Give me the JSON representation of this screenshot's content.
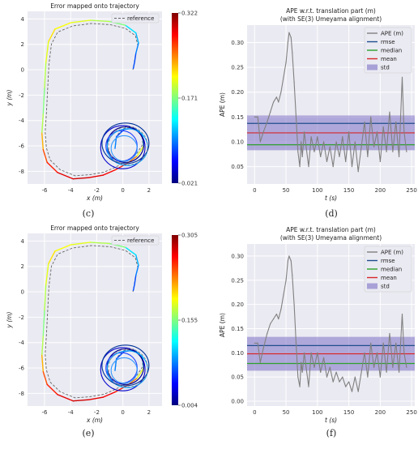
{
  "chart_data": [
    {
      "id": "c",
      "type": "line",
      "title": "Error mapped onto trajectory",
      "xlabel": "x (m)",
      "ylabel": "y (m)",
      "xlim": [
        -7.3,
        3.0
      ],
      "ylim": [
        -9.0,
        4.6
      ],
      "xticks": [
        "-6",
        "-4",
        "-2",
        "0",
        "2"
      ],
      "xtick_values": [
        -6,
        -4,
        -2,
        0,
        2
      ],
      "yticks": [
        "4",
        "2",
        "0",
        "-2",
        "-4",
        "-6",
        "-8"
      ],
      "ytick_values": [
        4,
        2,
        0,
        -2,
        -4,
        -6,
        -8
      ],
      "legend": [
        "reference"
      ],
      "legend_position": "top-right",
      "colorbar": {
        "min": 0.021,
        "max": 0.322,
        "labels": [
          "0.322",
          "0.171",
          "0.021"
        ]
      },
      "caption": "(c)"
    },
    {
      "id": "d",
      "type": "line",
      "title": "APE w.r.t. translation part (m)",
      "subtitle": "(with SE(3) Umeyama alignment)",
      "xlabel": "t (s)",
      "ylabel": "APE (m)",
      "xlim": [
        -12,
        255
      ],
      "ylim": [
        0.015,
        0.335
      ],
      "xticks": [
        "0",
        "50",
        "100",
        "150",
        "200",
        "250"
      ],
      "xtick_values": [
        0,
        50,
        100,
        150,
        200,
        250
      ],
      "yticks": [
        "0.05",
        "0.10",
        "0.15",
        "0.20",
        "0.25",
        "0.30"
      ],
      "ytick_values": [
        0.05,
        0.1,
        0.15,
        0.2,
        0.25,
        0.3
      ],
      "series": [
        {
          "name": "APE (m)",
          "color": "#808080",
          "x": [
            0,
            5,
            9,
            14,
            20,
            25,
            30,
            35,
            38,
            42,
            46,
            50,
            53,
            55,
            58,
            60,
            63,
            66,
            69,
            72,
            74,
            76,
            79,
            82,
            86,
            90,
            95,
            100,
            105,
            110,
            115,
            120,
            125,
            130,
            135,
            140,
            145,
            150,
            155,
            160,
            165,
            170,
            175,
            180,
            185,
            190,
            195,
            200,
            205,
            210,
            215,
            220,
            225,
            230,
            235,
            238,
            242
          ],
          "y": [
            0.15,
            0.15,
            0.1,
            0.12,
            0.14,
            0.16,
            0.18,
            0.19,
            0.18,
            0.2,
            0.23,
            0.26,
            0.3,
            0.32,
            0.31,
            0.28,
            0.22,
            0.15,
            0.08,
            0.05,
            0.1,
            0.07,
            0.12,
            0.09,
            0.05,
            0.11,
            0.08,
            0.11,
            0.07,
            0.1,
            0.06,
            0.09,
            0.05,
            0.1,
            0.07,
            0.11,
            0.06,
            0.12,
            0.05,
            0.1,
            0.04,
            0.09,
            0.14,
            0.07,
            0.15,
            0.09,
            0.12,
            0.06,
            0.13,
            0.08,
            0.16,
            0.08,
            0.14,
            0.07,
            0.23,
            0.12,
            0.08
          ]
        },
        {
          "name": "rmse",
          "color": "#1f4e8c",
          "value": 0.137
        },
        {
          "name": "median",
          "color": "#2ca02c",
          "value": 0.094
        },
        {
          "name": "mean",
          "color": "#d62728",
          "value": 0.118
        }
      ],
      "std_band": {
        "name": "std",
        "color": "#7b6fc4",
        "range": [
          0.083,
          0.153
        ]
      },
      "legend_position": "top-right",
      "caption": "(d)"
    },
    {
      "id": "e",
      "type": "line",
      "title": "Error mapped onto trajectory",
      "xlabel": "x (m)",
      "ylabel": "y (m)",
      "xlim": [
        -7.3,
        3.0
      ],
      "ylim": [
        -9.0,
        4.6
      ],
      "xticks": [
        "-6",
        "-4",
        "-2",
        "0",
        "2"
      ],
      "xtick_values": [
        -6,
        -4,
        -2,
        0,
        2
      ],
      "yticks": [
        "4",
        "2",
        "0",
        "-2",
        "-4",
        "-6",
        "-8"
      ],
      "ytick_values": [
        4,
        2,
        0,
        -2,
        -4,
        -6,
        -8
      ],
      "legend": [
        "reference"
      ],
      "legend_position": "top-right",
      "colorbar": {
        "min": 0.004,
        "max": 0.305,
        "labels": [
          "0.305",
          "0.155",
          "0.004"
        ]
      },
      "caption": "(e)"
    },
    {
      "id": "f",
      "type": "line",
      "title": "APE w.r.t. translation part (m)",
      "subtitle": "(with SE(3) Umeyama alignment)",
      "xlabel": "t (s)",
      "ylabel": "APE (m)",
      "xlim": [
        -12,
        255
      ],
      "ylim": [
        -0.01,
        0.325
      ],
      "xticks": [
        "0",
        "50",
        "100",
        "150",
        "200",
        "250"
      ],
      "xtick_values": [
        0,
        50,
        100,
        150,
        200,
        250
      ],
      "yticks": [
        "0.00",
        "0.05",
        "0.10",
        "0.15",
        "0.20",
        "0.25",
        "0.30"
      ],
      "ytick_values": [
        0.0,
        0.05,
        0.1,
        0.15,
        0.2,
        0.25,
        0.3
      ],
      "series": [
        {
          "name": "APE (m)",
          "color": "#808080",
          "x": [
            0,
            5,
            9,
            14,
            20,
            25,
            30,
            35,
            38,
            42,
            46,
            50,
            53,
            55,
            58,
            60,
            63,
            66,
            69,
            72,
            74,
            76,
            79,
            82,
            86,
            90,
            95,
            100,
            105,
            110,
            115,
            120,
            125,
            130,
            135,
            140,
            145,
            150,
            155,
            160,
            165,
            170,
            175,
            180,
            185,
            190,
            195,
            200,
            205,
            210,
            215,
            220,
            225,
            230,
            235,
            238,
            242
          ],
          "y": [
            0.12,
            0.12,
            0.08,
            0.11,
            0.14,
            0.16,
            0.17,
            0.18,
            0.17,
            0.19,
            0.22,
            0.25,
            0.29,
            0.3,
            0.29,
            0.26,
            0.2,
            0.12,
            0.05,
            0.03,
            0.08,
            0.06,
            0.1,
            0.07,
            0.03,
            0.1,
            0.07,
            0.1,
            0.06,
            0.09,
            0.05,
            0.07,
            0.04,
            0.06,
            0.04,
            0.05,
            0.03,
            0.04,
            0.02,
            0.05,
            0.02,
            0.06,
            0.1,
            0.05,
            0.12,
            0.07,
            0.1,
            0.05,
            0.12,
            0.06,
            0.14,
            0.07,
            0.12,
            0.06,
            0.18,
            0.1,
            0.07
          ]
        },
        {
          "name": "rmse",
          "color": "#1f4e8c",
          "value": 0.115
        },
        {
          "name": "median",
          "color": "#2ca02c",
          "value": 0.078
        },
        {
          "name": "mean",
          "color": "#d62728",
          "value": 0.098
        }
      ],
      "std_band": {
        "name": "std",
        "color": "#7b6fc4",
        "range": [
          0.063,
          0.133
        ]
      },
      "legend_position": "top-right",
      "caption": "(f)"
    }
  ]
}
